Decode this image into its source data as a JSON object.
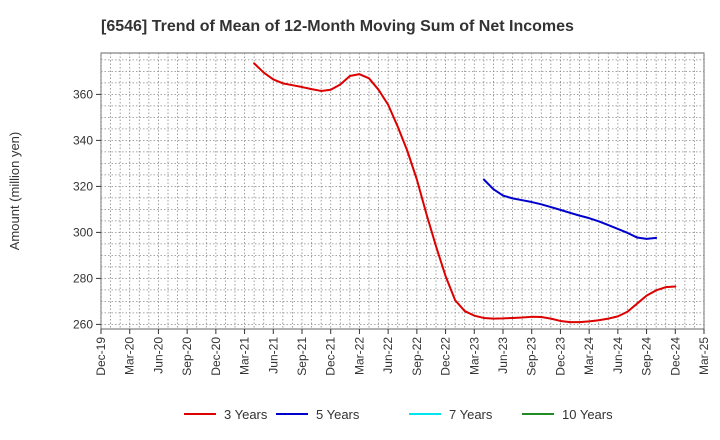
{
  "chart_data": {
    "type": "line",
    "title": "[6546]  Trend of Mean of 12-Month Moving Sum of Net Incomes",
    "ylabel": "Amount (million yen)",
    "xlabel": "",
    "ylim": [
      258,
      378
    ],
    "y_ticks": [
      260,
      280,
      300,
      320,
      340,
      360
    ],
    "grid": true,
    "legend_position": "bottom",
    "x_tick_labels": [
      "Dec-19",
      "Mar-20",
      "Jun-20",
      "Sep-20",
      "Dec-20",
      "Mar-21",
      "Jun-21",
      "Sep-21",
      "Dec-21",
      "Mar-22",
      "Jun-22",
      "Sep-22",
      "Dec-22",
      "Mar-23",
      "Jun-23",
      "Sep-23",
      "Dec-23",
      "Mar-24",
      "Jun-24",
      "Sep-24",
      "Dec-24",
      "Mar-25"
    ],
    "series": [
      {
        "name": "3 Years",
        "color": "#dd0000",
        "start_month_index": 16,
        "values": [
          373.5,
          369.5,
          366.5,
          364.8,
          364.0,
          363.2,
          362.3,
          361.5,
          362.0,
          364.3,
          368.0,
          368.8,
          367.0,
          362.0,
          355.5,
          346.0,
          335.5,
          323.0,
          308.0,
          294.0,
          281.0,
          270.5,
          265.8,
          263.8,
          262.8,
          262.5,
          262.6,
          262.8,
          263.0,
          263.3,
          263.2,
          262.5,
          261.5,
          261.0,
          261.0,
          261.3,
          261.8,
          262.5,
          263.5,
          265.5,
          269.0,
          272.5,
          274.8,
          276.2,
          276.5
        ]
      },
      {
        "name": "5 Years",
        "color": "#0000cc",
        "start_month_index": 40,
        "values": [
          323.0,
          318.8,
          316.0,
          314.8,
          314.0,
          313.2,
          312.2,
          311.0,
          309.8,
          308.5,
          307.3,
          306.2,
          304.8,
          303.2,
          301.5,
          299.8,
          297.8,
          297.2,
          297.6
        ]
      },
      {
        "name": "7 Years",
        "color": "#00e5ee",
        "start_month_index": 0,
        "values": []
      },
      {
        "name": "10 Years",
        "color": "#228b22",
        "start_month_index": 0,
        "values": []
      }
    ]
  }
}
